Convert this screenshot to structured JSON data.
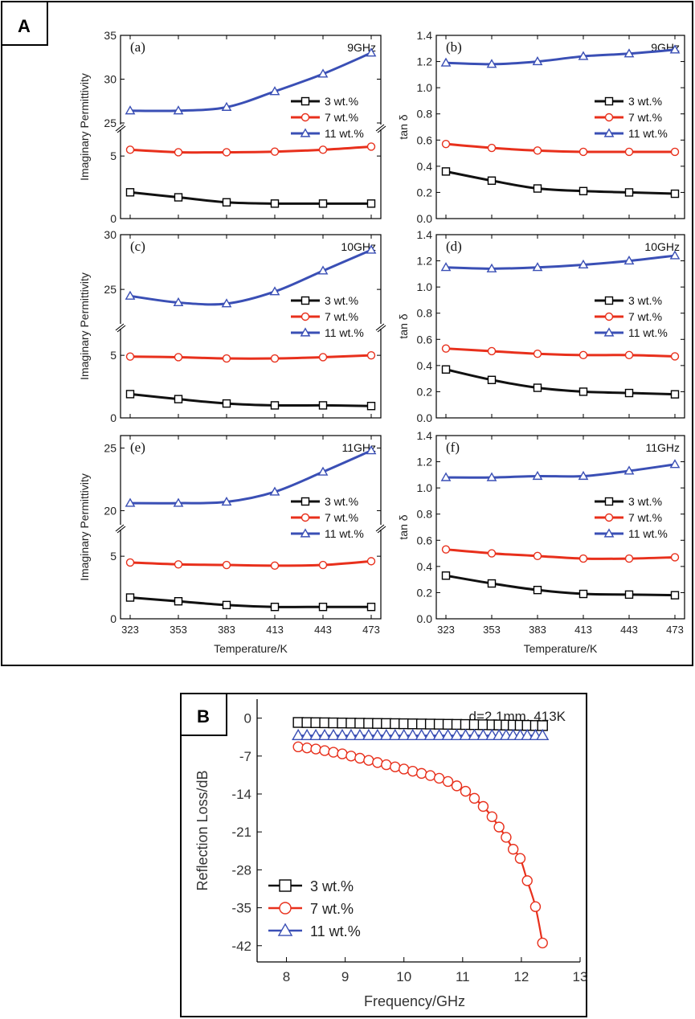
{
  "panel_labels": {
    "A": "A",
    "B": "B"
  },
  "colors": {
    "black": "#111111",
    "red": "#e8301c",
    "blue": "#3a4fb5",
    "frame": "#000000"
  },
  "legend_labels": [
    "3 wt.%",
    "7 wt.%",
    "11 wt.%"
  ],
  "chart_data": [
    {
      "id": "a",
      "type": "line",
      "sublabel": "(a)",
      "frequency": "9GHz",
      "ylabel": "Imaginary Permittivity",
      "xlabel": "",
      "break_axis": true,
      "lower_ylim": [
        0,
        7
      ],
      "lower_ticks": [
        0,
        5
      ],
      "upper_ylim": [
        25,
        35
      ],
      "upper_ticks": [
        25,
        30,
        35
      ],
      "x": [
        323,
        353,
        383,
        413,
        443,
        473
      ],
      "xticks": [
        323,
        353,
        383,
        413,
        443,
        473
      ],
      "series": [
        {
          "name": "3 wt.%",
          "values": [
            2.1,
            1.7,
            1.3,
            1.2,
            1.2,
            1.2
          ]
        },
        {
          "name": "7 wt.%",
          "values": [
            5.5,
            5.3,
            5.3,
            5.35,
            5.5,
            5.75
          ]
        },
        {
          "name": "11 wt.%",
          "values": [
            26.4,
            26.4,
            26.8,
            28.6,
            30.6,
            33.0
          ]
        }
      ]
    },
    {
      "id": "b",
      "type": "line",
      "sublabel": "(b)",
      "frequency": "9GHz",
      "ylabel": "tan δ",
      "xlabel": "",
      "break_axis": false,
      "ylim": [
        0.0,
        1.4
      ],
      "yticks": [
        "0.0",
        "0.2",
        "0.4",
        "0.6",
        "0.8",
        "1.0",
        "1.2",
        "1.4"
      ],
      "x": [
        323,
        353,
        383,
        413,
        443,
        473
      ],
      "xticks": [
        323,
        353,
        383,
        413,
        443,
        473
      ],
      "series": [
        {
          "name": "3 wt.%",
          "values": [
            0.36,
            0.29,
            0.23,
            0.21,
            0.2,
            0.19
          ]
        },
        {
          "name": "7 wt.%",
          "values": [
            0.57,
            0.54,
            0.52,
            0.51,
            0.51,
            0.51
          ]
        },
        {
          "name": "11 wt.%",
          "values": [
            1.19,
            1.18,
            1.2,
            1.24,
            1.26,
            1.29
          ]
        }
      ]
    },
    {
      "id": "c",
      "type": "line",
      "sublabel": "(c)",
      "frequency": "10GHz",
      "ylabel": "Imaginary Permittivity",
      "xlabel": "",
      "break_axis": true,
      "lower_ylim": [
        0,
        7
      ],
      "lower_ticks": [
        0,
        5
      ],
      "upper_ylim": [
        22,
        30
      ],
      "upper_ticks": [
        25,
        30
      ],
      "x": [
        323,
        353,
        383,
        413,
        443,
        473
      ],
      "xticks": [
        323,
        353,
        383,
        413,
        443,
        473
      ],
      "series": [
        {
          "name": "3 wt.%",
          "values": [
            1.9,
            1.5,
            1.15,
            1.0,
            1.0,
            0.95
          ]
        },
        {
          "name": "7 wt.%",
          "values": [
            4.9,
            4.85,
            4.75,
            4.75,
            4.85,
            5.0
          ]
        },
        {
          "name": "11 wt.%",
          "values": [
            24.4,
            23.8,
            23.7,
            24.8,
            26.7,
            28.6
          ]
        }
      ]
    },
    {
      "id": "d",
      "type": "line",
      "sublabel": "(d)",
      "frequency": "10GHz",
      "ylabel": "tan δ",
      "xlabel": "",
      "break_axis": false,
      "ylim": [
        0.0,
        1.4
      ],
      "yticks": [
        "0.0",
        "0.2",
        "0.4",
        "0.6",
        "0.8",
        "1.0",
        "1.2",
        "1.4"
      ],
      "x": [
        323,
        353,
        383,
        413,
        443,
        473
      ],
      "xticks": [
        323,
        353,
        383,
        413,
        443,
        473
      ],
      "series": [
        {
          "name": "3 wt.%",
          "values": [
            0.37,
            0.29,
            0.23,
            0.2,
            0.19,
            0.18
          ]
        },
        {
          "name": "7 wt.%",
          "values": [
            0.53,
            0.51,
            0.49,
            0.48,
            0.48,
            0.47
          ]
        },
        {
          "name": "11 wt.%",
          "values": [
            1.15,
            1.14,
            1.15,
            1.17,
            1.2,
            1.24
          ]
        }
      ]
    },
    {
      "id": "e",
      "type": "line",
      "sublabel": "(e)",
      "frequency": "11GHz",
      "ylabel": "Imaginary Permittivity",
      "xlabel": "Temperature/K",
      "break_axis": true,
      "lower_ylim": [
        0,
        7
      ],
      "lower_ticks": [
        0,
        5
      ],
      "upper_ylim": [
        19,
        26
      ],
      "upper_ticks": [
        20,
        25
      ],
      "x": [
        323,
        353,
        383,
        413,
        443,
        473
      ],
      "xticks": [
        323,
        353,
        383,
        413,
        443,
        473
      ],
      "series": [
        {
          "name": "3 wt.%",
          "values": [
            1.7,
            1.4,
            1.1,
            0.95,
            0.95,
            0.95
          ]
        },
        {
          "name": "7 wt.%",
          "values": [
            4.5,
            4.35,
            4.3,
            4.25,
            4.3,
            4.6
          ]
        },
        {
          "name": "11 wt.%",
          "values": [
            20.6,
            20.6,
            20.7,
            21.5,
            23.1,
            24.8
          ]
        }
      ]
    },
    {
      "id": "f",
      "type": "line",
      "sublabel": "(f)",
      "frequency": "11GHz",
      "ylabel": "tan δ",
      "xlabel": "Temperature/K",
      "break_axis": false,
      "ylim": [
        0.0,
        1.4
      ],
      "yticks": [
        "0.0",
        "0.2",
        "0.4",
        "0.6",
        "0.8",
        "1.0",
        "1.2",
        "1.4"
      ],
      "x": [
        323,
        353,
        383,
        413,
        443,
        473
      ],
      "xticks": [
        323,
        353,
        383,
        413,
        443,
        473
      ],
      "series": [
        {
          "name": "3 wt.%",
          "values": [
            0.33,
            0.27,
            0.22,
            0.19,
            0.185,
            0.18
          ]
        },
        {
          "name": "7 wt.%",
          "values": [
            0.53,
            0.5,
            0.48,
            0.46,
            0.46,
            0.47
          ]
        },
        {
          "name": "11 wt.%",
          "values": [
            1.08,
            1.08,
            1.09,
            1.09,
            1.13,
            1.18
          ]
        }
      ]
    },
    {
      "id": "B",
      "type": "line",
      "annotation": "d=2.1mm, 413K",
      "xlabel": "Frequency/GHz",
      "ylabel": "Reflection Loss/dB",
      "xlim": [
        7.5,
        13
      ],
      "ylim": [
        -45,
        3.5
      ],
      "xticks": [
        8,
        9,
        10,
        11,
        12,
        13
      ],
      "yticks": [
        0,
        -7,
        -14,
        -21,
        -28,
        -35,
        -42
      ],
      "x": [
        8.2,
        8.35,
        8.5,
        8.65,
        8.8,
        8.95,
        9.1,
        9.25,
        9.4,
        9.55,
        9.7,
        9.85,
        10.0,
        10.15,
        10.3,
        10.45,
        10.6,
        10.75,
        10.9,
        11.05,
        11.2,
        11.35,
        11.5,
        11.62,
        11.74,
        11.86,
        11.98,
        12.1,
        12.24,
        12.36
      ],
      "series": [
        {
          "name": "3 wt.%",
          "values": [
            -0.8,
            -0.82,
            -0.84,
            -0.86,
            -0.88,
            -0.9,
            -0.92,
            -0.94,
            -0.96,
            -0.98,
            -1.0,
            -1.02,
            -1.04,
            -1.06,
            -1.08,
            -1.1,
            -1.12,
            -1.14,
            -1.16,
            -1.18,
            -1.2,
            -1.22,
            -1.24,
            -1.26,
            -1.28,
            -1.3,
            -1.32,
            -1.34,
            -1.36,
            -1.38
          ]
        },
        {
          "name": "7 wt.%",
          "values": [
            -5.3,
            -5.5,
            -5.7,
            -6.0,
            -6.3,
            -6.6,
            -7.0,
            -7.4,
            -7.8,
            -8.2,
            -8.6,
            -9.0,
            -9.4,
            -9.8,
            -10.2,
            -10.6,
            -11.1,
            -11.7,
            -12.5,
            -13.5,
            -14.8,
            -16.3,
            -18.2,
            -20.1,
            -22.0,
            -24.2,
            -25.9,
            -30.0,
            -34.8,
            -41.5
          ]
        },
        {
          "name": "11 wt.%",
          "values": [
            -3.2,
            -3.2,
            -3.2,
            -3.2,
            -3.2,
            -3.2,
            -3.2,
            -3.2,
            -3.2,
            -3.2,
            -3.2,
            -3.2,
            -3.2,
            -3.2,
            -3.2,
            -3.2,
            -3.2,
            -3.2,
            -3.2,
            -3.2,
            -3.2,
            -3.2,
            -3.2,
            -3.2,
            -3.2,
            -3.2,
            -3.2,
            -3.2,
            -3.2,
            -3.2
          ]
        }
      ]
    }
  ]
}
